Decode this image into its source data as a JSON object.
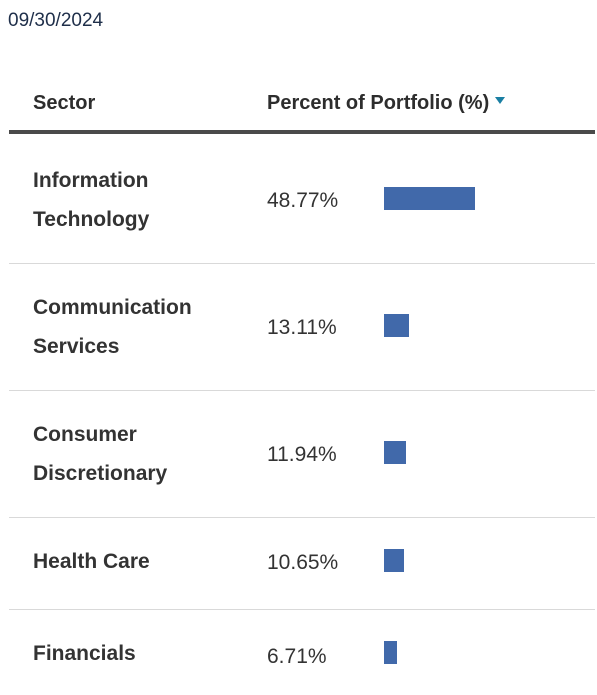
{
  "date": "09/30/2024",
  "header": {
    "sector": "Sector",
    "percent": "Percent of Portfolio (%)"
  },
  "colors": {
    "bar": "#4169aa",
    "sort_icon": "#1a7fa3"
  },
  "icons": {
    "sort": "sort-desc-triangle-icon"
  },
  "rows": [
    {
      "sector": "Information Technology",
      "percent": "48.77%",
      "value": 48.77
    },
    {
      "sector": "Communication Services",
      "percent": "13.11%",
      "value": 13.11
    },
    {
      "sector": "Consumer Discretionary",
      "percent": "11.94%",
      "value": 11.94
    },
    {
      "sector": "Health Care",
      "percent": "10.65%",
      "value": 10.65
    },
    {
      "sector": "Financials",
      "percent": "6.71%",
      "value": 6.71
    }
  ]
}
